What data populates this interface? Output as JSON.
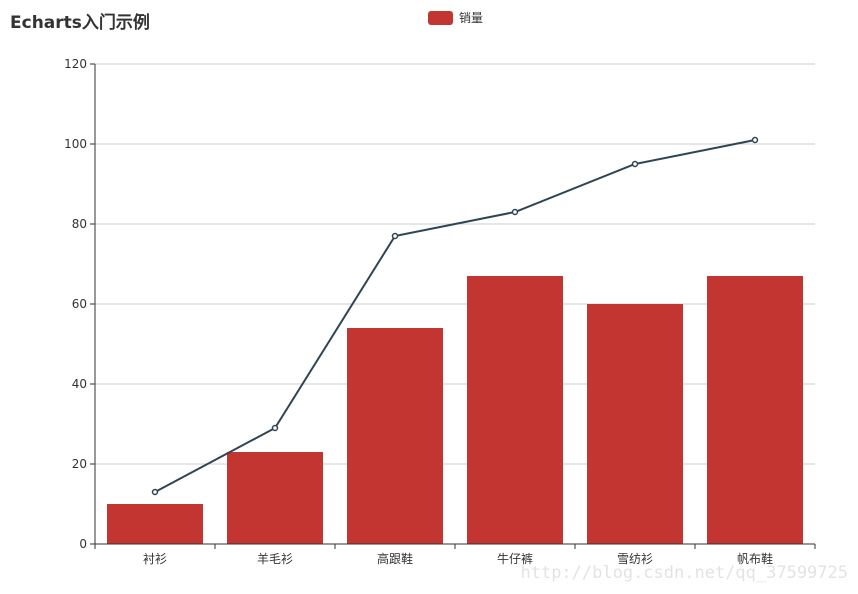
{
  "header": {
    "title": "Echarts入门示例"
  },
  "legend": {
    "label": "销量",
    "placement": "top-center"
  },
  "watermark": "http://blog.csdn.net/qq_37599725",
  "colors": {
    "bar": "#c23531",
    "line": "#2f4554",
    "grid": "#cccccc",
    "axis": "#333333"
  },
  "chart_data": {
    "type": "bar",
    "title": "Echarts入门示例",
    "categories": [
      "衬衫",
      "羊毛衫",
      "高跟鞋",
      "牛仔裤",
      "雪纺衫",
      "帆布鞋"
    ],
    "series": [
      {
        "name": "销量",
        "type": "bar",
        "values": [
          10,
          23,
          54,
          67,
          60,
          67
        ]
      },
      {
        "type": "line",
        "values": [
          13,
          29,
          77,
          83,
          95,
          101
        ]
      }
    ],
    "ylim": [
      0,
      120
    ],
    "yticks": [
      0,
      20,
      40,
      60,
      80,
      100,
      120
    ],
    "grid": true,
    "legend_placement": "top-center"
  }
}
